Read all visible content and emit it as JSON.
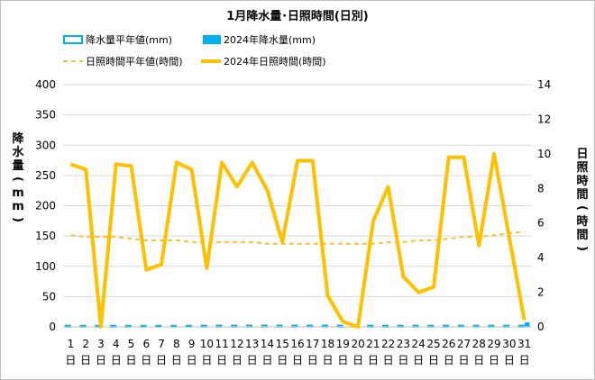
{
  "chart_data": {
    "type": "bar+line",
    "title": "1月降水量･日照時間(日別)",
    "legend": [
      {
        "label": "降水量平年値(mm)",
        "kind": "bar-outline",
        "color": "#00b0f0"
      },
      {
        "label": "2024年降水量(mm)",
        "kind": "bar",
        "color": "#00b0f0"
      },
      {
        "label": "日照時間平年値(時間)",
        "kind": "dashed-line",
        "color": "#f3c03d"
      },
      {
        "label": "2024年日照時間(時間)",
        "kind": "line",
        "color": "#ffc000"
      }
    ],
    "y_left": {
      "label": "降水量(mm)",
      "ylim": [
        0,
        400
      ],
      "ticks": [
        "0",
        "50",
        "100",
        "150",
        "200",
        "250",
        "300",
        "350",
        "400"
      ]
    },
    "y_right": {
      "label": "日照時間(時間)",
      "ylim": [
        0,
        14
      ],
      "ticks": [
        "0",
        "2",
        "4",
        "6",
        "8",
        "10",
        "12",
        "14"
      ]
    },
    "categories": [
      "1",
      "2",
      "3",
      "4",
      "5",
      "6",
      "7",
      "8",
      "9",
      "10",
      "11",
      "12",
      "13",
      "14",
      "15",
      "16",
      "17",
      "18",
      "19",
      "20",
      "21",
      "22",
      "23",
      "24",
      "25",
      "26",
      "27",
      "28",
      "29",
      "30",
      "31"
    ],
    "category_suffix": "日",
    "series": [
      {
        "name": "降水量平年値(mm)",
        "axis": "left",
        "values": [
          2.3,
          2.2,
          2.2,
          2.2,
          2.2,
          2.2,
          2.2,
          2.2,
          2.2,
          2.4,
          2.5,
          2.5,
          2.6,
          2.6,
          2.6,
          2.6,
          2.6,
          2.6,
          2.5,
          2.4,
          2.4,
          2.4,
          2.4,
          2.4,
          2.4,
          2.4,
          2.4,
          2.4,
          2.4,
          2.4,
          2.4
        ]
      },
      {
        "name": "2024年降水量(mm)",
        "axis": "left",
        "values": [
          0,
          0,
          0,
          0,
          0,
          0,
          0,
          0,
          0,
          0,
          0,
          0,
          0,
          0,
          0,
          0,
          0,
          0,
          0,
          0,
          0.5,
          0.5,
          0,
          0,
          0,
          0,
          0,
          0,
          0,
          0,
          7.5
        ]
      },
      {
        "name": "日照時間平年値(時間)",
        "axis": "right",
        "values": [
          5.3,
          5.2,
          5.2,
          5.2,
          5.1,
          5.0,
          5.0,
          5.0,
          4.9,
          4.9,
          4.9,
          4.9,
          4.9,
          4.8,
          4.8,
          4.8,
          4.8,
          4.8,
          4.8,
          4.8,
          4.8,
          4.9,
          4.9,
          5.0,
          5.0,
          5.1,
          5.2,
          5.2,
          5.3,
          5.4,
          5.5
        ]
      },
      {
        "name": "2024年日照時間(時間)",
        "axis": "right",
        "values": [
          9.4,
          9.1,
          0.0,
          9.4,
          9.3,
          3.3,
          3.6,
          9.5,
          9.1,
          3.4,
          9.5,
          8.1,
          9.5,
          7.9,
          4.9,
          9.6,
          9.6,
          1.8,
          0.3,
          0.0,
          6.1,
          8.1,
          2.9,
          2.0,
          2.3,
          9.8,
          9.8,
          4.7,
          10.0,
          5.2,
          0.4
        ]
      }
    ],
    "grid": "horizontal"
  }
}
